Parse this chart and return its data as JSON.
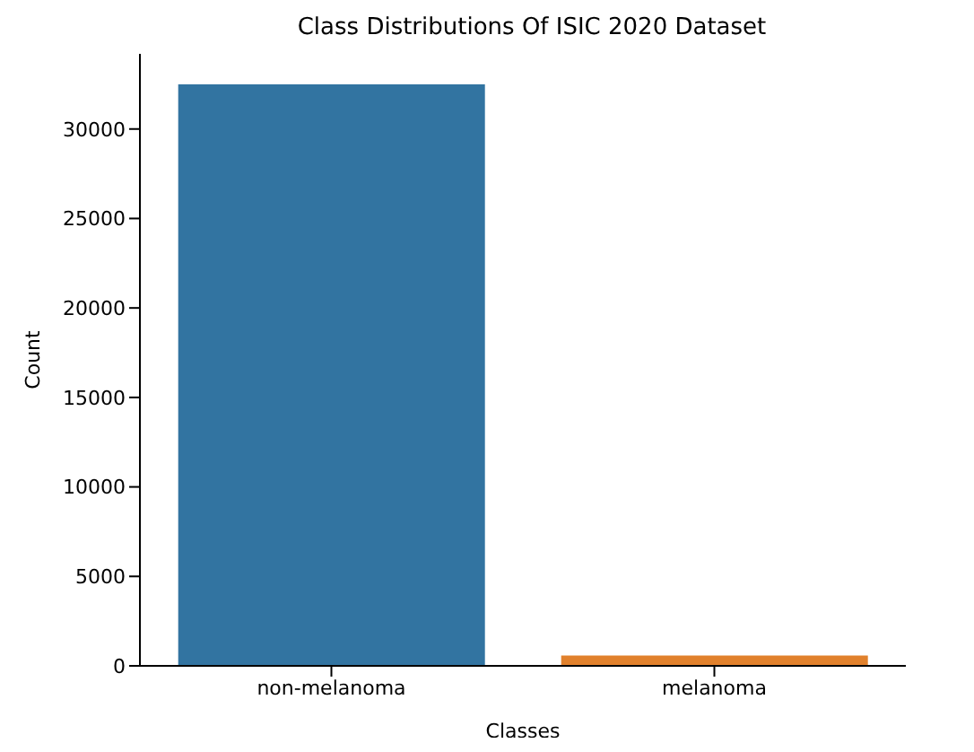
{
  "chart_data": {
    "type": "bar",
    "title": "Class Distributions Of ISIC 2020 Dataset",
    "xlabel": "Classes",
    "ylabel": "Count",
    "categories": [
      "non-melanoma",
      "melanoma"
    ],
    "values": [
      32500,
      580
    ],
    "colors": [
      "#3274a1",
      "#e1812c"
    ],
    "ylim": [
      0,
      34200
    ],
    "yticks": [
      0,
      5000,
      10000,
      15000,
      20000,
      25000,
      30000
    ]
  }
}
